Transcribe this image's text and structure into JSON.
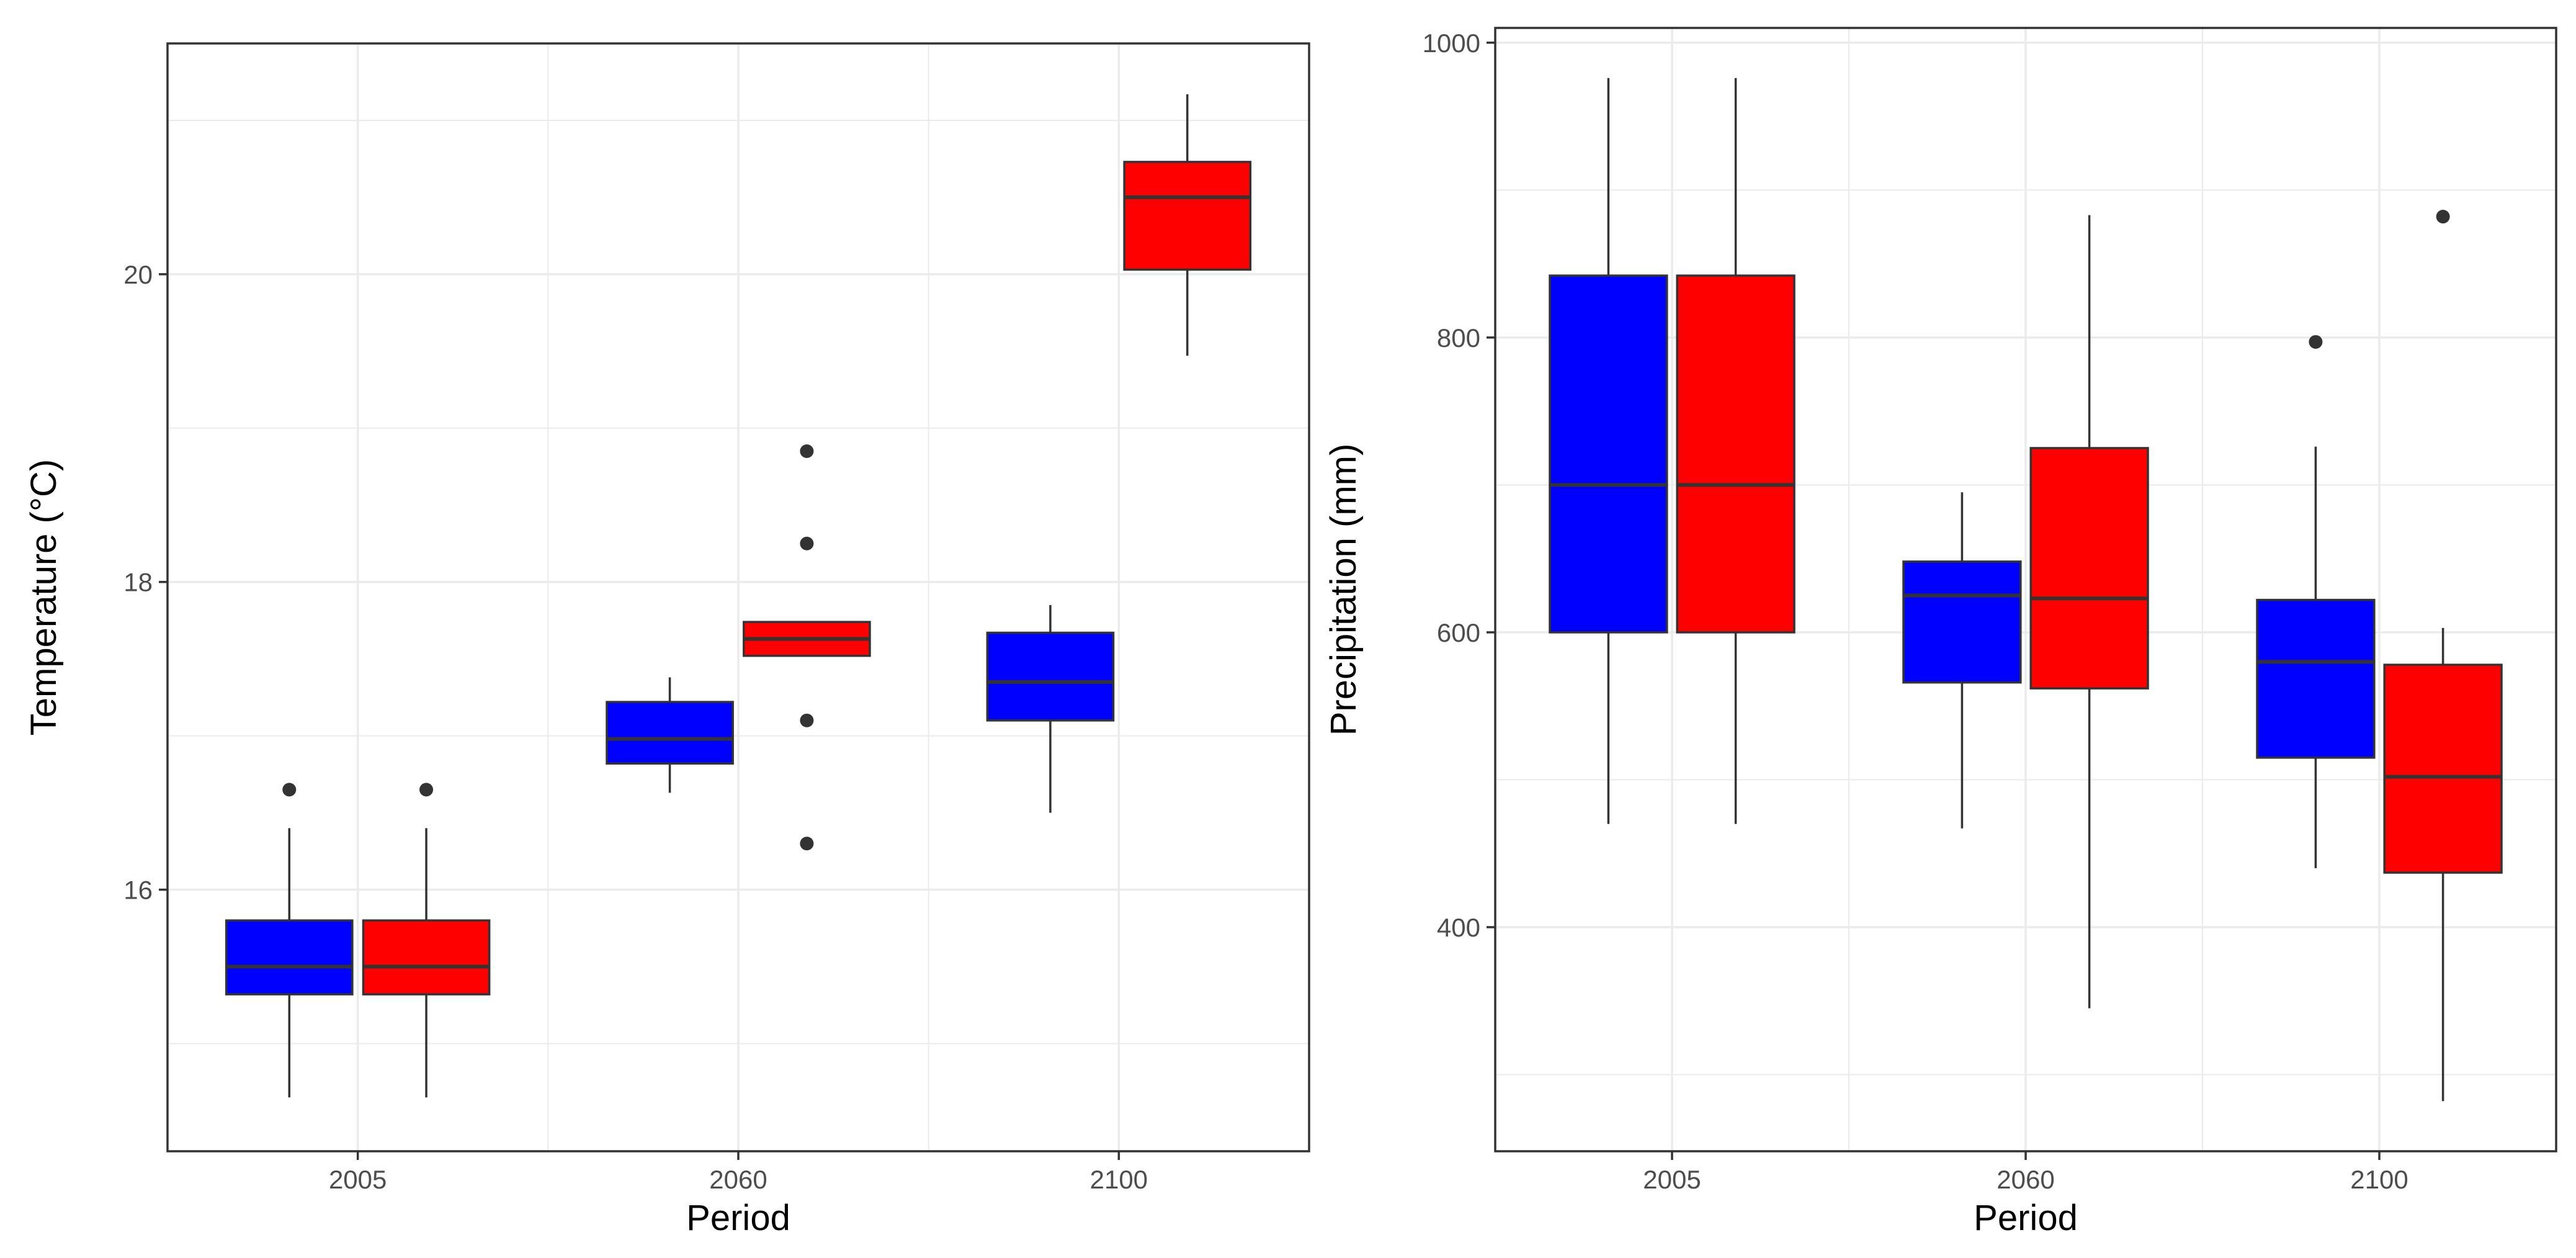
{
  "colors": {
    "series_a": "#0000ff",
    "series_b": "#ff0000",
    "grid": "#ebebeb",
    "panel_border": "#333333",
    "box_line": "#333333",
    "outlier": "#333333",
    "tick_text": "#4d4d4d"
  },
  "chart_data": [
    {
      "type": "boxplot",
      "title": "",
      "xlabel": "Period",
      "ylabel": "Temperature (°C)",
      "categories": [
        "2005",
        "2060",
        "2100"
      ],
      "ylim": [
        14.3,
        21.5
      ],
      "yticks": [
        16,
        18,
        20
      ],
      "y_minor_gridlines": [
        15,
        17,
        19,
        21
      ],
      "grid": true,
      "legend": "none",
      "series": [
        {
          "name": "blue",
          "color": "#0000ff",
          "boxes": [
            {
              "category": "2005",
              "whisker_low": 14.65,
              "q1": 15.32,
              "median": 15.5,
              "q3": 15.8,
              "whisker_high": 16.4,
              "outliers": [
                16.65
              ]
            },
            {
              "category": "2060",
              "whisker_low": 16.63,
              "q1": 16.82,
              "median": 16.98,
              "q3": 17.22,
              "whisker_high": 17.38,
              "outliers": []
            },
            {
              "category": "2100",
              "whisker_low": 16.5,
              "q1": 17.1,
              "median": 17.35,
              "q3": 17.67,
              "whisker_high": 17.85,
              "outliers": []
            }
          ]
        },
        {
          "name": "red",
          "color": "#ff0000",
          "boxes": [
            {
              "category": "2005",
              "whisker_low": 14.65,
              "q1": 15.32,
              "median": 15.5,
              "q3": 15.8,
              "whisker_high": 16.4,
              "outliers": [
                16.65
              ]
            },
            {
              "category": "2060",
              "whisker_low": 17.52,
              "q1": 17.52,
              "median": 17.63,
              "q3": 17.74,
              "whisker_high": 17.74,
              "outliers": [
                16.3,
                17.1,
                18.25,
                18.85
              ]
            },
            {
              "category": "2100",
              "whisker_low": 19.47,
              "q1": 20.03,
              "median": 20.5,
              "q3": 20.73,
              "whisker_high": 21.17,
              "outliers": []
            }
          ]
        }
      ]
    },
    {
      "type": "boxplot",
      "title": "",
      "xlabel": "Period",
      "ylabel": "Precipitation (mm)",
      "categories": [
        "2005",
        "2060",
        "2100"
      ],
      "ylim": [
        248,
        1010
      ],
      "yticks": [
        400,
        600,
        800,
        1000
      ],
      "y_minor_gridlines": [
        300,
        500,
        700,
        900
      ],
      "grid": true,
      "legend": "none",
      "series": [
        {
          "name": "blue",
          "color": "#0000ff",
          "boxes": [
            {
              "category": "2005",
              "whisker_low": 470,
              "q1": 600,
              "median": 700,
              "q3": 842,
              "whisker_high": 976,
              "outliers": []
            },
            {
              "category": "2060",
              "whisker_low": 467,
              "q1": 566,
              "median": 625,
              "q3": 648,
              "whisker_high": 695,
              "outliers": []
            },
            {
              "category": "2100",
              "whisker_low": 440,
              "q1": 515,
              "median": 580,
              "q3": 622,
              "whisker_high": 726,
              "outliers": [
                797
              ]
            }
          ]
        },
        {
          "name": "red",
          "color": "#ff0000",
          "boxes": [
            {
              "category": "2005",
              "whisker_low": 470,
              "q1": 600,
              "median": 700,
              "q3": 842,
              "whisker_high": 976,
              "outliers": []
            },
            {
              "category": "2060",
              "whisker_low": 345,
              "q1": 562,
              "median": 623,
              "q3": 725,
              "whisker_high": 883,
              "outliers": []
            },
            {
              "category": "2100",
              "whisker_low": 282,
              "q1": 437,
              "median": 502,
              "q3": 578,
              "whisker_high": 603,
              "outliers": [
                882
              ]
            }
          ]
        }
      ]
    }
  ]
}
